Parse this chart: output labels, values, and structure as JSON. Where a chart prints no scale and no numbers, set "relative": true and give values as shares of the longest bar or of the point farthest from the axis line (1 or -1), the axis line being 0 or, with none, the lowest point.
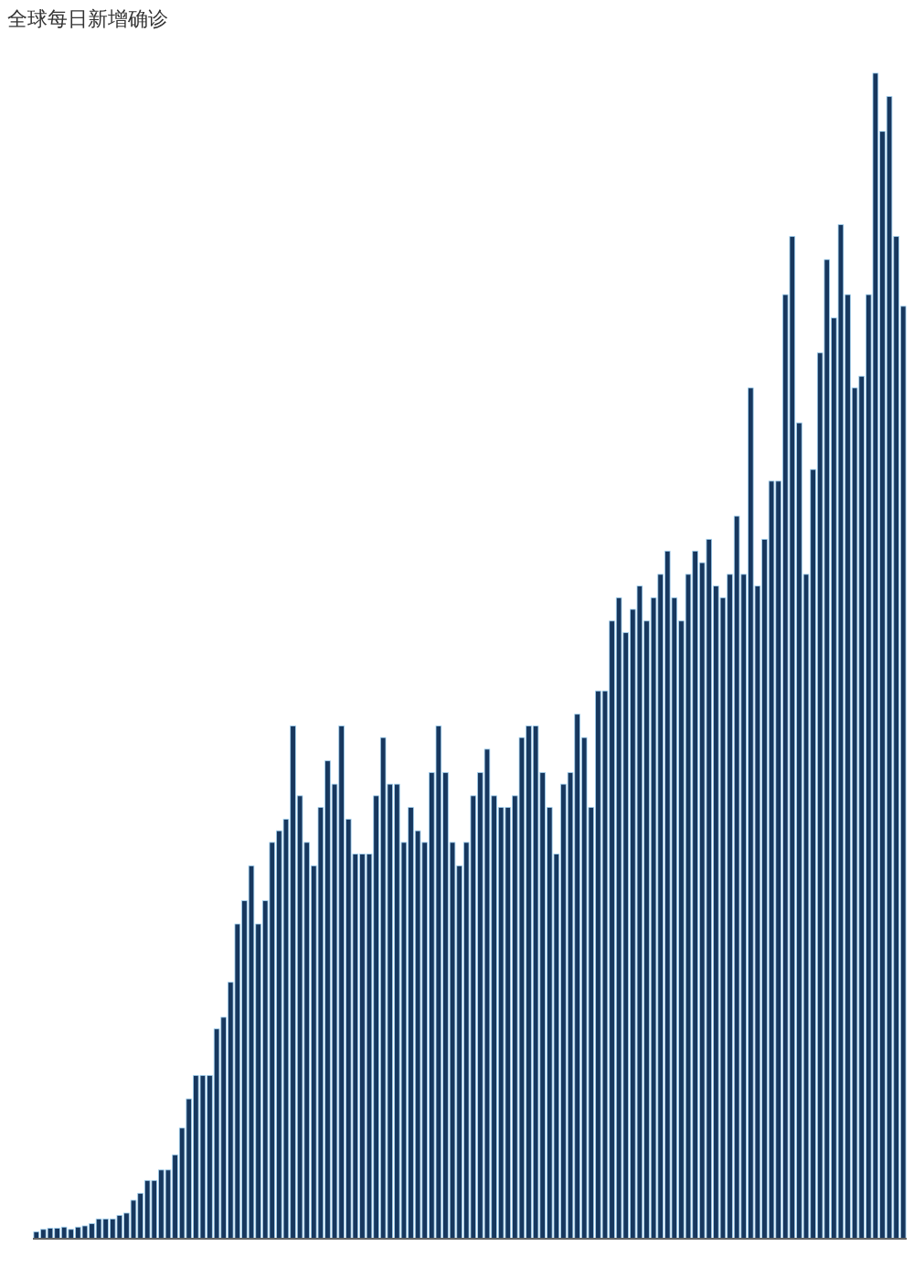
{
  "chart_data": {
    "type": "bar",
    "title": "全球每日新增确诊",
    "relative": true,
    "color": "#17375e",
    "values": [
      0.006,
      0.008,
      0.009,
      0.009,
      0.01,
      0.008,
      0.01,
      0.011,
      0.013,
      0.017,
      0.017,
      0.017,
      0.02,
      0.022,
      0.033,
      0.039,
      0.05,
      0.05,
      0.059,
      0.059,
      0.072,
      0.095,
      0.12,
      0.14,
      0.14,
      0.14,
      0.18,
      0.19,
      0.22,
      0.27,
      0.29,
      0.32,
      0.27,
      0.29,
      0.34,
      0.35,
      0.36,
      0.44,
      0.38,
      0.34,
      0.32,
      0.37,
      0.41,
      0.39,
      0.44,
      0.36,
      0.33,
      0.33,
      0.33,
      0.38,
      0.43,
      0.39,
      0.39,
      0.34,
      0.37,
      0.35,
      0.34,
      0.4,
      0.44,
      0.4,
      0.34,
      0.32,
      0.34,
      0.38,
      0.4,
      0.42,
      0.38,
      0.37,
      0.37,
      0.38,
      0.43,
      0.44,
      0.44,
      0.4,
      0.37,
      0.33,
      0.39,
      0.4,
      0.45,
      0.43,
      0.37,
      0.47,
      0.47,
      0.53,
      0.55,
      0.52,
      0.54,
      0.56,
      0.53,
      0.55,
      0.57,
      0.59,
      0.55,
      0.53,
      0.57,
      0.59,
      0.58,
      0.6,
      0.56,
      0.55,
      0.57,
      0.62,
      0.57,
      0.73,
      0.56,
      0.6,
      0.65,
      0.65,
      0.81,
      0.86,
      0.7,
      0.57,
      0.66,
      0.76,
      0.84,
      0.79,
      0.87,
      0.81,
      0.73,
      0.74,
      0.81,
      1.0,
      0.95,
      0.98,
      0.86,
      0.8
    ],
    "categories": [
      null,
      null,
      null,
      null,
      null,
      null,
      null,
      null,
      null,
      null,
      null,
      null,
      null,
      null,
      null,
      null,
      null,
      null,
      null,
      null,
      null,
      null,
      null,
      null,
      null,
      null,
      null,
      null,
      null,
      null,
      null,
      null,
      null,
      null,
      null,
      null,
      null,
      null,
      null,
      null,
      null,
      null,
      null,
      null,
      null,
      null,
      null,
      null,
      null,
      null,
      null,
      null,
      null,
      null,
      null,
      null,
      null,
      null,
      null,
      null,
      null,
      null,
      null,
      null,
      null,
      null,
      null,
      null,
      null,
      null,
      null,
      null,
      null,
      null,
      null,
      null,
      null,
      null,
      null,
      null,
      null,
      null,
      null,
      null,
      null,
      null,
      null,
      null,
      null,
      null,
      null,
      null,
      null,
      null,
      null,
      null,
      null,
      null,
      null,
      null,
      null,
      null,
      null,
      null,
      null,
      null,
      null,
      null,
      null,
      null,
      null,
      null,
      null,
      null,
      null,
      null,
      null,
      null,
      null,
      null,
      null,
      null,
      null,
      null,
      null,
      null
    ]
  }
}
